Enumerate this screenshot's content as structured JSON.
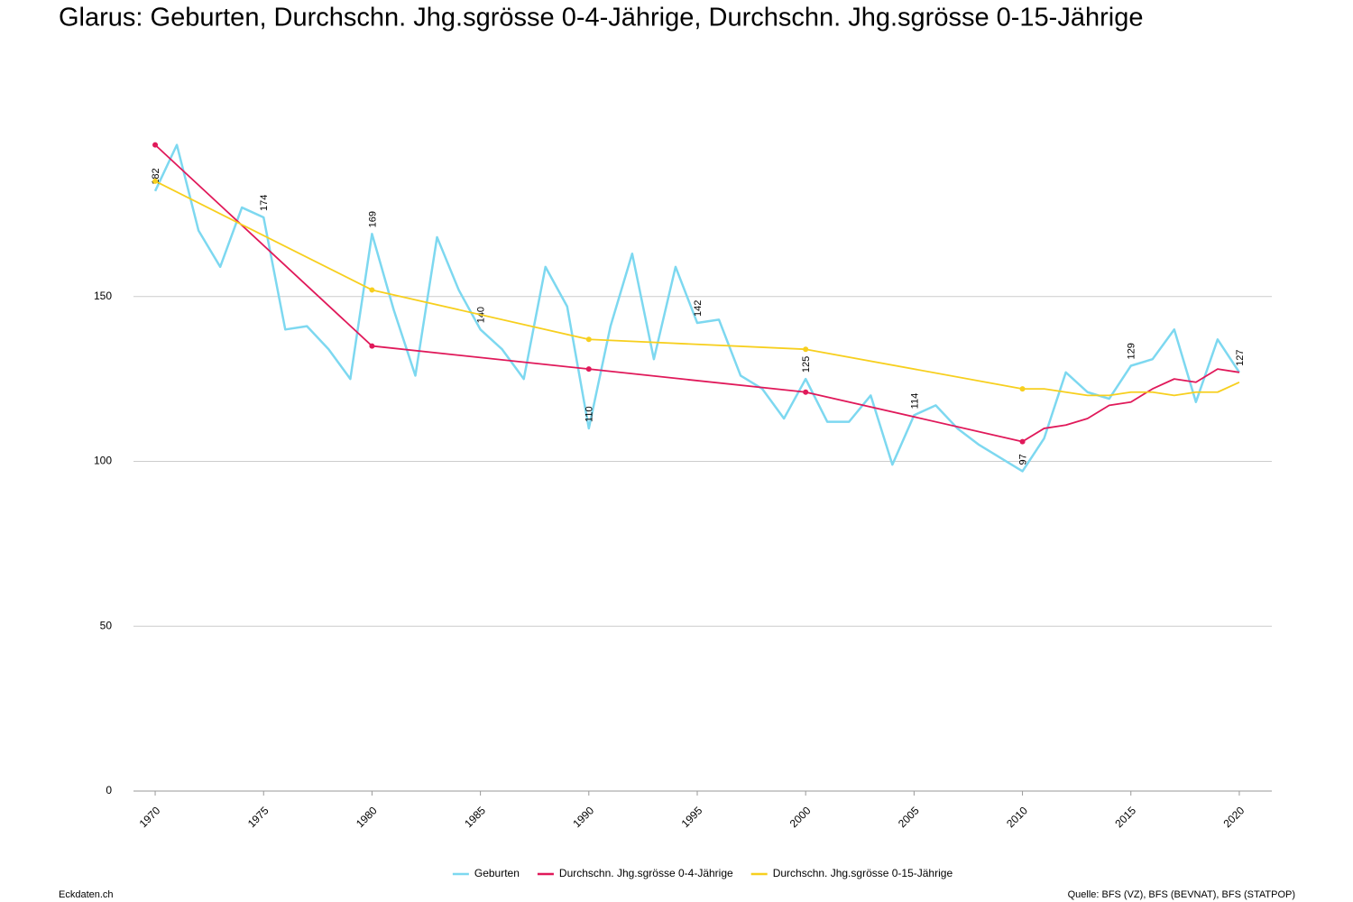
{
  "chart_data": {
    "type": "line",
    "title": "Glarus: Geburten, Durchschn. Jhg.sgrösse 0-4-Jährige, Durchschn. Jhg.sgrösse 0-15-Jährige",
    "site": "Eckdaten.ch",
    "source": "Quelle: BFS (VZ), BFS (BEVNAT), BFS (STATPOP)",
    "x": [
      1970,
      1971,
      1972,
      1973,
      1974,
      1975,
      1976,
      1977,
      1978,
      1979,
      1980,
      1981,
      1982,
      1983,
      1984,
      1985,
      1986,
      1987,
      1988,
      1989,
      1990,
      1991,
      1992,
      1993,
      1994,
      1995,
      1996,
      1997,
      1998,
      1999,
      2000,
      2001,
      2002,
      2003,
      2004,
      2005,
      2006,
      2007,
      2008,
      2009,
      2010,
      2011,
      2012,
      2013,
      2014,
      2015,
      2016,
      2017,
      2018,
      2019,
      2020
    ],
    "xlim": [
      1969,
      2021.5
    ],
    "xticks": [
      1970,
      1975,
      1980,
      1985,
      1990,
      1995,
      2000,
      2005,
      2010,
      2015,
      2020
    ],
    "ylim": [
      0,
      200
    ],
    "yticks": [
      0,
      50,
      100,
      150
    ],
    "grid": true,
    "legend": "bottom",
    "label_every": 5,
    "series": [
      {
        "name": "Geburten",
        "color": "#7dd8f0",
        "values": [
          182,
          196,
          170,
          159,
          177,
          174,
          140,
          141,
          134,
          125,
          169,
          146,
          126,
          168,
          152,
          140,
          134,
          125,
          159,
          147,
          110,
          141,
          163,
          131,
          159,
          142,
          143,
          126,
          122,
          113,
          125,
          112,
          112,
          120,
          99,
          114,
          117,
          110,
          105,
          101,
          97,
          107,
          127,
          121,
          119,
          129,
          131,
          140,
          118,
          137,
          127
        ]
      },
      {
        "name": "Durchschn. Jhg.sgrösse 0-4-Jährige",
        "color": "#e0195a",
        "x": [
          1970,
          1980,
          1990,
          2000,
          2010,
          2011,
          2012,
          2013,
          2014,
          2015,
          2016,
          2017,
          2018,
          2019,
          2020
        ],
        "values": [
          196,
          135,
          128,
          121,
          106,
          110,
          111,
          113,
          117,
          118,
          122,
          125,
          124,
          128,
          127
        ]
      },
      {
        "name": "Durchschn. Jhg.sgrösse 0-15-Jährige",
        "color": "#f7cf1e",
        "x": [
          1970,
          1980,
          1990,
          2000,
          2010,
          2011,
          2012,
          2013,
          2014,
          2015,
          2016,
          2017,
          2018,
          2019,
          2020
        ],
        "values": [
          185,
          152,
          137,
          134,
          122,
          122,
          121,
          120,
          120,
          121,
          121,
          120,
          121,
          121,
          124
        ]
      }
    ]
  }
}
